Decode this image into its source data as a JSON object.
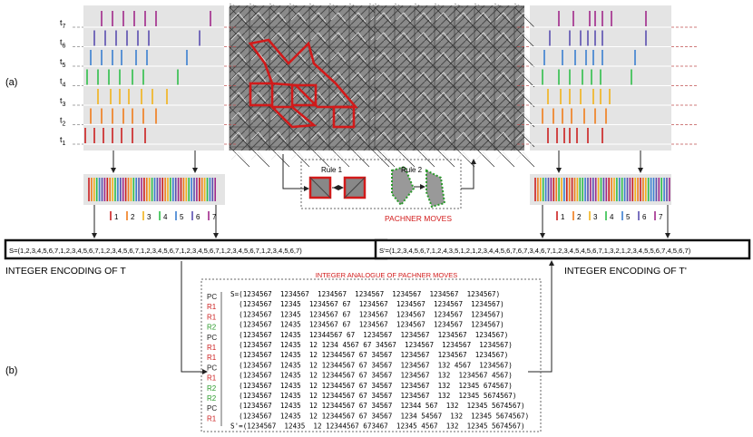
{
  "labels": {
    "panel_a": "(a)",
    "panel_b": "(b)",
    "rule1": "Rule 1",
    "rule2": "Rule 2",
    "pachner_moves": "PACHNER MOVES",
    "encoding_t": "INTEGER ENCODING OF T",
    "encoding_tp": "INTEGER ENCODING OF T'",
    "analogue_title": "INTEGER ANALOGUE OF PACHNER MOVES"
  },
  "time_labels": [
    {
      "base": "t",
      "sub": "7"
    },
    {
      "base": "t",
      "sub": "6"
    },
    {
      "base": "t",
      "sub": "5"
    },
    {
      "base": "t",
      "sub": "4"
    },
    {
      "base": "t",
      "sub": "3"
    },
    {
      "base": "t",
      "sub": "2"
    },
    {
      "base": "t",
      "sub": "1"
    }
  ],
  "palette": [
    "#cc1f1f",
    "#f07c1a",
    "#f2b21a",
    "#2fbf4a",
    "#3a7fd0",
    "#5a4fb0",
    "#a0288a"
  ],
  "legend": [
    "1",
    "2",
    "3",
    "4",
    "5",
    "6",
    "7"
  ],
  "sequence_t": "S=(1,2,3,4,5,6,7,1,2,3,4,5,6,7,1,2,3,4,5,6,7,1,2,3,4,5,6,7,1,2,3,4,5,6,7,1,2,3,4,5,6,7,1,2,3,4,5,6,7)",
  "sequence_tp": "S'=(1,2,3,4,5,6,7,1,2,4,3,5,1,2,1,2,3,4,4,5,6,7,6,7,3,4,6,7,1,2,3,4,5,4,5,6,7,1,3,2,1,2,3,4,5,5,6,7,4,5,6,7)",
  "moves": [
    "PC",
    "R1",
    "R1",
    "R2",
    "PC",
    "R1",
    "R1",
    "PC",
    "R1",
    "R2",
    "R2",
    "PC",
    "R1"
  ],
  "move_colors": {
    "PC": "#222222",
    "R1": "#cc1f1f",
    "R2": "#2a9a2a"
  },
  "rows": [
    "S=(1234567  1234567  1234567  1234567  1234567  1234567  1234567)",
    "  (1234567  12345  1234567 67  1234567  1234567  1234567  1234567)",
    "  (1234567  12345  1234567 67  1234567  1234567  1234567  1234567)",
    "  (1234567  12435  1234567 67  1234567  1234567  1234567  1234567)",
    "  (1234567  12435  12344567 67  1234567  1234567  1234567  1234567)",
    "  (1234567  12435  12 1234 4567 67 34567  1234567  1234567  1234567)",
    "  (1234567  12435  12 12344567 67 34567  1234567  1234567  1234567)",
    "  (1234567  12435  12 12344567 67 34567  1234567  132 4567  1234567)",
    "  (1234567  12435  12 12344567 67 34567  1234567  132  1234567 4567)",
    "  (1234567  12435  12 12344567 67 34567  1234567  132  12345 674567)",
    "  (1234567  12435  12 12344567 67 34567  1234567  132  12345 5674567)",
    "  (1234567  12435  12 12344567 67 34567  12344 567  132  12345 5674567)",
    "  (1234567  12435  12 12344567 67 34567  1234 54567  132  12345 5674567)",
    "S'=(1234567  12435  12 12344567 673467  12345 4567  132  12345 5674567)"
  ]
}
